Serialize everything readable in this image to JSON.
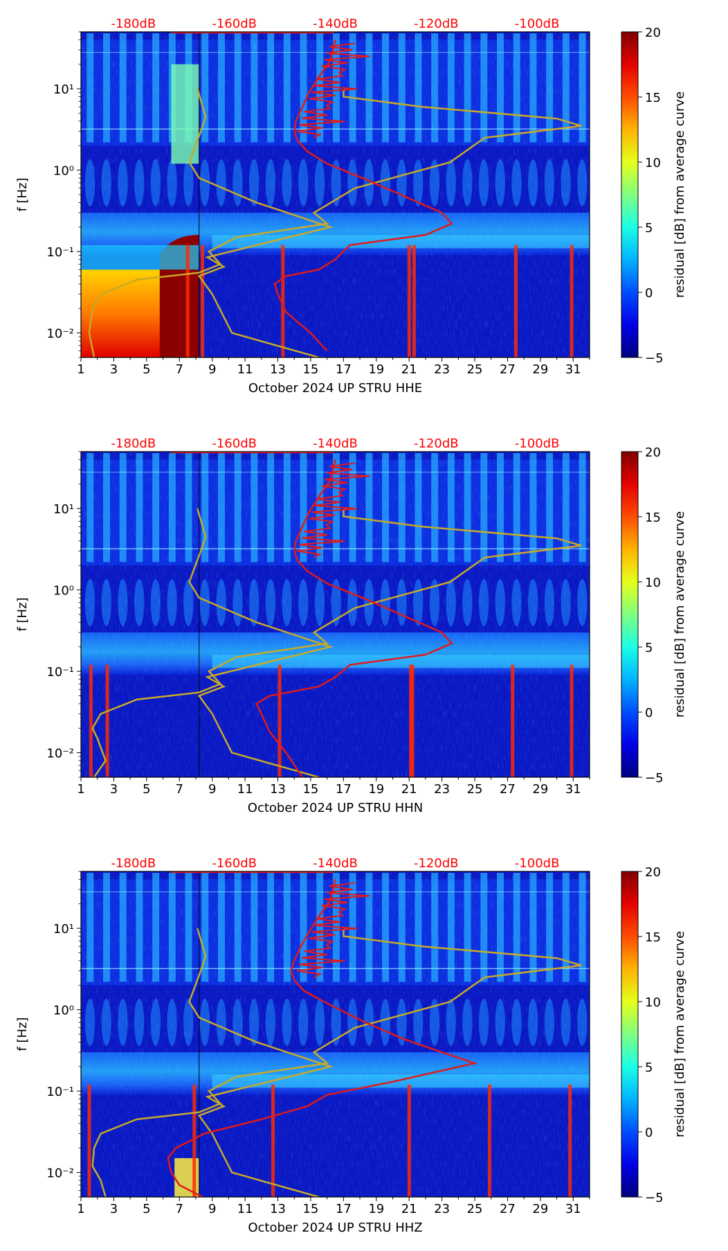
{
  "colors": {
    "db_label": "#ff0000",
    "noise_model": "#c8aa28",
    "median_curve": "#e11a1a"
  },
  "chart_data": [
    {
      "type": "heatmap",
      "id": "hhe",
      "channel": "HHE",
      "xlabel": "October 2024 UP STRU  HHE",
      "ylabel": "f [Hz]",
      "x_ticks": [
        "1",
        "3",
        "5",
        "7",
        "9",
        "11",
        "13",
        "15",
        "17",
        "19",
        "21",
        "23",
        "25",
        "27",
        "29",
        "31"
      ],
      "xlim": [
        1,
        32
      ],
      "y_ticks": [
        "10⁻²",
        "10⁻¹",
        "10⁰",
        "10¹"
      ],
      "ylim": [
        0.005,
        50
      ],
      "db_labels": [
        "-180dB",
        "-160dB",
        "-140dB",
        "-120dB",
        "-100dB"
      ],
      "colorbar": {
        "label": "residual [dB] from average curve",
        "ticks": [
          "20",
          "15",
          "10",
          "5",
          "0",
          "−5"
        ],
        "range": [
          -5,
          20
        ]
      },
      "noise_model_high": {
        "x": [
          15.5,
          10.2,
          9.0,
          8.2,
          9.7,
          8.7,
          16.2,
          11.7,
          8.2,
          7.6,
          8.3,
          8.6,
          8.1
        ],
        "f": [
          0.005,
          0.01,
          0.03,
          0.05,
          0.065,
          0.085,
          0.2,
          0.4,
          0.8,
          1.25,
          3.0,
          4.5,
          10
        ]
      },
      "noise_model_low": {
        "x": [
          1.8,
          1.5,
          1.7,
          2.2,
          4.4,
          8.2,
          9.5,
          8.8,
          10.5,
          16.0,
          15.2,
          17.7,
          23.5,
          25.6,
          31.5,
          30.0,
          21.8,
          17.0,
          17.0,
          17.2
        ],
        "f": [
          0.005,
          0.01,
          0.02,
          0.03,
          0.045,
          0.055,
          0.07,
          0.1,
          0.15,
          0.22,
          0.3,
          0.6,
          1.25,
          2.5,
          3.5,
          4.3,
          6.0,
          8.0,
          9.5,
          10
        ]
      },
      "median_curve": {
        "x": [
          16.0,
          15.0,
          13.5,
          13.0,
          12.8,
          13.5,
          15.5,
          16.5,
          17.4,
          22.0,
          23.6,
          23.0,
          21.0,
          18.5,
          16.0,
          14.8,
          14.2,
          14.0,
          14.1,
          14.5,
          14.9,
          15.5,
          16.2,
          16.5
        ],
        "f": [
          0.006,
          0.01,
          0.018,
          0.03,
          0.04,
          0.05,
          0.06,
          0.08,
          0.12,
          0.16,
          0.22,
          0.3,
          0.45,
          0.75,
          1.2,
          1.7,
          2.3,
          3.0,
          4.0,
          6.0,
          9.0,
          14.0,
          22.0,
          40.0
        ]
      },
      "event_columns": [
        7.4,
        8.3,
        13.2,
        20.9,
        21.2,
        27.4,
        30.8
      ]
    },
    {
      "type": "heatmap",
      "id": "hhn",
      "channel": "HHN",
      "xlabel": "October 2024 UP STRU  HHN",
      "ylabel": "f [Hz]",
      "x_ticks": [
        "1",
        "3",
        "5",
        "7",
        "9",
        "11",
        "13",
        "15",
        "17",
        "19",
        "21",
        "23",
        "25",
        "27",
        "29",
        "31"
      ],
      "xlim": [
        1,
        32
      ],
      "y_ticks": [
        "10⁻²",
        "10⁻¹",
        "10⁰",
        "10¹"
      ],
      "ylim": [
        0.005,
        50
      ],
      "db_labels": [
        "-180dB",
        "-160dB",
        "-140dB",
        "-120dB",
        "-100dB"
      ],
      "colorbar": {
        "label": "residual [dB] from average curve",
        "ticks": [
          "20",
          "15",
          "10",
          "5",
          "0",
          "−5"
        ],
        "range": [
          -5,
          20
        ]
      },
      "noise_model_high": {
        "x": [
          15.5,
          10.2,
          9.0,
          8.2,
          9.7,
          8.7,
          16.2,
          11.7,
          8.2,
          7.6,
          8.3,
          8.6,
          8.1
        ],
        "f": [
          0.005,
          0.01,
          0.03,
          0.05,
          0.065,
          0.085,
          0.2,
          0.4,
          0.8,
          1.25,
          3.0,
          4.5,
          10
        ]
      },
      "noise_model_low": {
        "x": [
          1.8,
          2.5,
          2.0,
          1.7,
          2.2,
          4.4,
          8.2,
          9.5,
          8.8,
          10.5,
          16.0,
          15.2,
          17.7,
          23.5,
          25.6,
          31.5,
          30.0,
          21.8,
          17.0,
          17.0,
          17.2
        ],
        "f": [
          0.005,
          0.008,
          0.015,
          0.02,
          0.03,
          0.045,
          0.055,
          0.07,
          0.1,
          0.15,
          0.22,
          0.3,
          0.6,
          1.25,
          2.5,
          3.5,
          4.3,
          6.0,
          8.0,
          9.5,
          10
        ]
      },
      "median_curve": {
        "x": [
          14.5,
          13.5,
          12.5,
          12.0,
          11.7,
          12.5,
          15.5,
          16.5,
          17.4,
          22.0,
          23.6,
          23.0,
          21.0,
          18.5,
          16.0,
          14.8,
          14.2,
          14.0,
          14.1,
          14.5,
          14.9,
          15.5,
          16.2,
          16.5
        ],
        "f": [
          0.005,
          0.01,
          0.018,
          0.03,
          0.04,
          0.05,
          0.065,
          0.085,
          0.12,
          0.16,
          0.22,
          0.3,
          0.45,
          0.75,
          1.2,
          1.7,
          2.3,
          3.0,
          4.0,
          6.0,
          9.0,
          14.0,
          22.0,
          40.0
        ]
      },
      "event_columns": [
        1.5,
        2.5,
        13.0,
        21.0,
        21.1,
        27.2,
        30.8
      ]
    },
    {
      "type": "heatmap",
      "id": "hhz",
      "channel": "HHZ",
      "xlabel": "October 2024 UP STRU  HHZ",
      "ylabel": "f [Hz]",
      "x_ticks": [
        "1",
        "3",
        "5",
        "7",
        "9",
        "11",
        "13",
        "15",
        "17",
        "19",
        "21",
        "23",
        "25",
        "27",
        "29",
        "31"
      ],
      "xlim": [
        1,
        32
      ],
      "y_ticks": [
        "10⁻²",
        "10⁻¹",
        "10⁰",
        "10¹"
      ],
      "ylim": [
        0.005,
        50
      ],
      "db_labels": [
        "-180dB",
        "-160dB",
        "-140dB",
        "-120dB",
        "-100dB"
      ],
      "colorbar": {
        "label": "residual [dB] from average curve",
        "ticks": [
          "20",
          "15",
          "10",
          "5",
          "0",
          "−5"
        ],
        "range": [
          -5,
          20
        ]
      },
      "noise_model_high": {
        "x": [
          15.5,
          10.2,
          9.0,
          8.2,
          9.7,
          8.7,
          16.2,
          11.7,
          8.2,
          7.6,
          8.3,
          8.6,
          8.1
        ],
        "f": [
          0.005,
          0.01,
          0.03,
          0.05,
          0.065,
          0.085,
          0.2,
          0.4,
          0.8,
          1.25,
          3.0,
          4.5,
          10
        ]
      },
      "noise_model_low": {
        "x": [
          2.5,
          2.2,
          1.7,
          1.8,
          2.2,
          4.4,
          8.2,
          9.5,
          8.8,
          10.5,
          16.0,
          15.2,
          17.7,
          23.5,
          25.6,
          31.5,
          30.0,
          21.8,
          17.0,
          17.0,
          17.2
        ],
        "f": [
          0.005,
          0.008,
          0.012,
          0.02,
          0.03,
          0.045,
          0.055,
          0.07,
          0.1,
          0.15,
          0.22,
          0.3,
          0.6,
          1.25,
          2.5,
          3.5,
          4.3,
          6.0,
          8.0,
          9.5,
          10
        ]
      },
      "median_curve": {
        "x": [
          8.4,
          7.0,
          6.5,
          6.3,
          6.8,
          8.5,
          12.0,
          14.8,
          16.0,
          20.0,
          25.0,
          23.0,
          20.5,
          18.0,
          16.0,
          14.6,
          14.0,
          13.8,
          14.0,
          14.4,
          14.9,
          15.5,
          16.2,
          16.5
        ],
        "f": [
          0.005,
          0.007,
          0.01,
          0.015,
          0.02,
          0.03,
          0.045,
          0.065,
          0.09,
          0.13,
          0.22,
          0.3,
          0.45,
          0.75,
          1.2,
          1.7,
          2.3,
          3.0,
          4.0,
          6.0,
          9.0,
          14.0,
          22.0,
          40.0
        ]
      },
      "event_columns": [
        1.4,
        7.8,
        12.6,
        20.9,
        25.8,
        30.7
      ]
    }
  ]
}
